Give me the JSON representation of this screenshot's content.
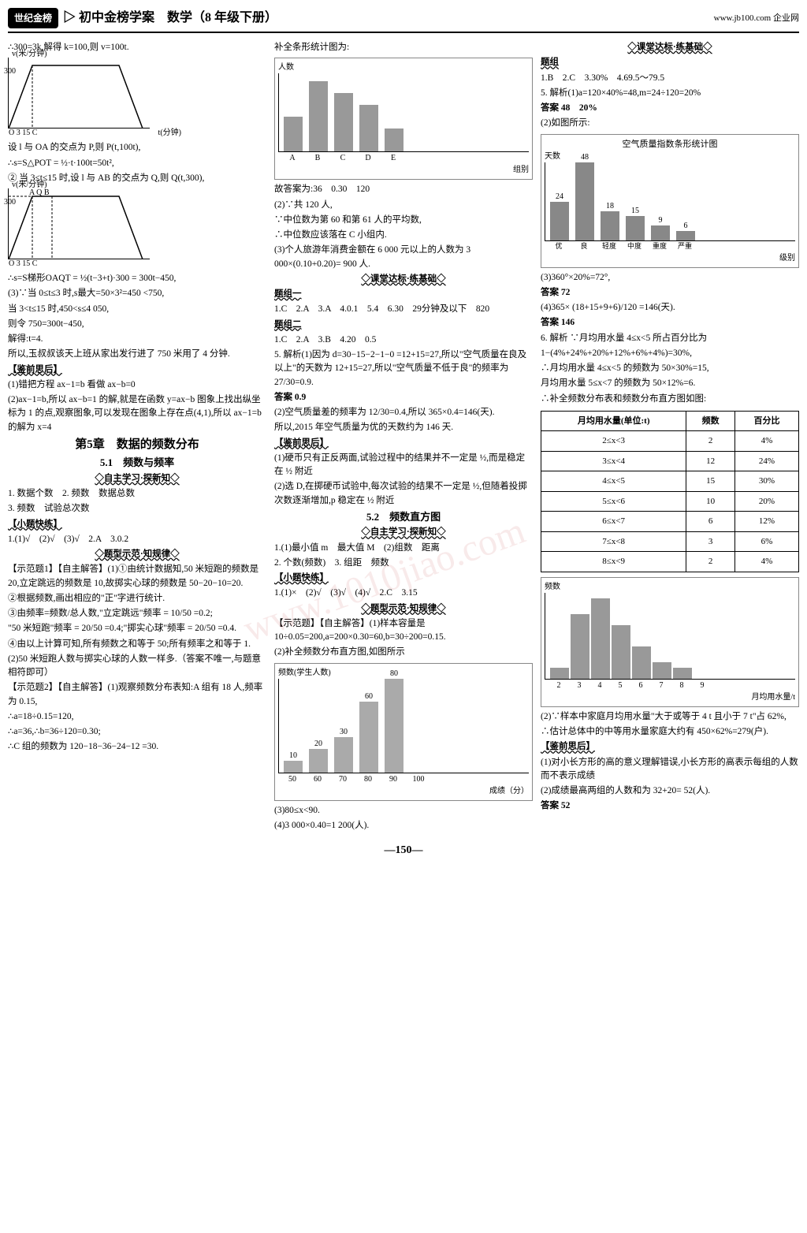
{
  "header": {
    "logo": "世纪金榜",
    "title": "▷ 初中金榜学案　数学（8 年级下册）",
    "url": "www.jb100.com 企业网"
  },
  "col1": {
    "l1": "∴300=3k,解得 k=100,则 v=100t.",
    "graph1_ylabel": "v(米/分钟)",
    "graph1_xlabel": "t(分钟)",
    "graph1_ytick": "300",
    "graph1_xticks": "O  3   15 C",
    "l2": "设 l 与 OA 的交点为 P,则 P(t,100t),",
    "l3": "∴s=S△POT = ½·t·100t=50t²,",
    "l4": "② 当 3≤t≤15 时,设 l 与 AB 的交点为 Q,则 Q(t,300),",
    "graph2_labels": "A  Q  B",
    "l5": "∴s=S梯形OAQT = ½(t−3+t)·300 = 300t−450,",
    "l6": "(3)∵当 0≤t≤3 时,s最大=50×3²=450 <750,",
    "l7": "当 3<t≤15 时,450<s≤4 050,",
    "l8": "则令 750=300t−450,",
    "l9": "解得:t=4.",
    "l10": "所以,玉叔叔该天上班从家出发行进了 750 米用了 4 分钟.",
    "jianqian": "【鉴前思后】",
    "jq1": "(1)错把方程 ax−1=b 看做 ax−b=0",
    "jq2": "(2)ax−1=b,所以 ax−b=1 的解,就是在函数 y=ax−b 图象上找出纵坐标为 1 的点,观察图象,可以发现在图象上存在点(4,1),所以 ax−1=b 的解为 x=4",
    "chapter": "第5章　数据的频数分布",
    "sec51": "5.1　频数与频率",
    "zizhu": "◇自主学习·探新知◇",
    "z1": "1. 数据个数　2. 频数　数据总数",
    "z2": "3. 频数　试验总次数",
    "kuailian": "【小题快练】",
    "kl": "1.(1)√　(2)√　(3)√　2.A　3.0.2",
    "tixing": "◇题型示范·知规律◇",
    "ex1_head": "【示范题1】【自主解答】(1)①由统计数据知,50 米短跑的频数是 20,立定跳远的频数是 10,故掷实心球的频数是 50−20−10=20.",
    "ex1_2": "②根据频数,画出相应的\"正\"字进行统计.",
    "ex1_3": "③由频率=频数/总人数,\"立定跳远\"频率 = 10/50 =0.2;",
    "ex1_4": "\"50 米短跑\"频率 = 20/50 =0.4;\"掷实心球\"频率 = 20/50 =0.4.",
    "ex1_5": "④由以上计算可知,所有频数之和等于 50;所有频率之和等于 1.",
    "ex1_6": "(2)50 米短跑人数与掷实心球的人数一样多.（答案不唯一,与题意相符即可）",
    "ex2_head": "【示范题2】【自主解答】(1)观察频数分布表知:A 组有 18 人,频率为 0.15,",
    "ex2_1": "∴a=18÷0.15=120,",
    "ex2_2": "∴a=36,∴b=36÷120=0.30;",
    "ex2_3": "∴C 组的频数为 120−18−36−24−12 =30."
  },
  "col2": {
    "l1": "补全条形统计图为:",
    "chart1": {
      "ylabel": "人数",
      "ytick_values": [
        36,
        30,
        24,
        18,
        12,
        6
      ],
      "categories": [
        "A",
        "B",
        "C",
        "D",
        "E"
      ],
      "xlabel": "组别",
      "values": [
        18,
        36,
        30,
        24,
        12
      ],
      "bar_color": "#999999",
      "grid_color": "#cccccc"
    },
    "l2": "故答案为:36　0.30　120",
    "l3": "(2)∵共 120 人,",
    "l4": "∵中位数为第 60 和第 61 人的平均数,",
    "l5": "∴中位数应该落在 C 小组内.",
    "l6": "(3)个人旅游年消费金额在 6 000 元以上的人数为 3 000×(0.10+0.20)= 900 人.",
    "ketang": "◇课堂达标·练基础◇",
    "tizu1": "题组一",
    "tz1": "1.C　2.A　3.A　4.0.1　5.4　6.30　29分钟及以下　820",
    "tizu2": "题组二",
    "tz2": "1.C　2.A　3.B　4.20　0.5",
    "q5": "5. 解析(1)因为 d=30−15−2−1−0 =12+15=27,所以\"空气质量在良及以上\"的天数为 12+15=27,所以\"空气质量不低于良\"的频率为 27/30=0.9.",
    "ans5": "答案 0.9",
    "q5_2": "(2)空气质量差的频率为 12/30=0.4,所以 365×0.4=146(天).",
    "q5_3": "所以,2015 年空气质量为优的天数约为 146 天.",
    "jianqian2": "【鉴前思后】",
    "jq2_1": "(1)硬币只有正反两面,试验过程中的结果并不一定是 ½,而是稳定在 ½ 附近",
    "jq2_2": "(2)选 D,在掷硬币试验中,每次试验的结果不一定是 ½,但随着投掷次数逐渐增加,p 稳定在 ½ 附近",
    "sec52": "5.2　频数直方图",
    "zizhu52": "◇自主学习·探新知◇",
    "z52_1": "1.(1)最小值 m　最大值 M　(2)组数　距离",
    "z52_2": "2. 个数(频数)　3. 组距　频数",
    "kl52_head": "【小题快练】",
    "kl52": "1.(1)×　(2)√　(3)√　(4)√　2.C　3.15",
    "tixing52": "◇题型示范·知规律◇",
    "ex52_1": "【示范题】【自主解答】(1)样本容量是 10÷0.05=200,a=200×0.30=60,b=30÷200=0.15.",
    "ex52_2": "(2)补全频数分布直方图,如图所示",
    "chart2": {
      "ylabel": "频数(学生人数)",
      "xlabel": "成绩（分）",
      "categories": [
        "50",
        "60",
        "70",
        "80",
        "90",
        "100"
      ],
      "values": [
        10,
        20,
        30,
        60,
        80
      ],
      "value_labels": [
        "10",
        "20",
        "30",
        "60",
        "80"
      ],
      "bar_color": "#aaaaaa"
    },
    "ex52_3": "(3)80≤x<90.",
    "ex52_4": "(4)3 000×0.40=1 200(人)."
  },
  "col3": {
    "ketang3": "◇课堂达标·练基础◇",
    "tizu": "题组",
    "tz": "1.B　2.C　3.30%　4.69.5～79.5",
    "q5": "5. 解析(1)a=120×40%=48,m=24÷120=20%",
    "ans5": "答案 48　20%",
    "q5_2": "(2)如图所示:",
    "chart3": {
      "title": "空气质量指数条形统计图",
      "ylabel": "天数",
      "categories": [
        "优",
        "良",
        "轻度污染",
        "中度污染",
        "重度污染",
        "严重污染"
      ],
      "cat_short": [
        "优",
        "良",
        "轻度",
        "中度",
        "重度",
        "严重"
      ],
      "xlabel": "级别",
      "values": [
        24,
        48,
        18,
        15,
        9,
        6
      ],
      "bar_color": "#888888",
      "yticks": [
        48,
        42,
        36,
        30,
        24,
        18,
        12,
        6
      ]
    },
    "q5_3": "(3)360°×20%=72°,",
    "ans5_3": "答案 72",
    "q5_4": "(4)365× (18+15+9+6)/120 =146(天).",
    "ans5_4": "答案 146",
    "q6": "6. 解析 ∵月均用水量 4≤x<5 所占百分比为",
    "q6_1": "1−(4%+24%+20%+12%+6%+4%)=30%,",
    "q6_2": "∴月均用水量 4≤x<5 的频数为 50×30%=15,",
    "q6_3": "月均用水量 5≤x<7 的频数为 50×12%=6.",
    "q6_4": "∴补全频数分布表和频数分布直方图如图:",
    "table": {
      "headers": [
        "月均用水量(单位:t)",
        "频数",
        "百分比"
      ],
      "rows": [
        [
          "2≤x<3",
          "2",
          "4%"
        ],
        [
          "3≤x<4",
          "12",
          "24%"
        ],
        [
          "4≤x<5",
          "15",
          "30%"
        ],
        [
          "5≤x<6",
          "10",
          "20%"
        ],
        [
          "6≤x<7",
          "6",
          "12%"
        ],
        [
          "7≤x<8",
          "3",
          "6%"
        ],
        [
          "8≤x<9",
          "2",
          "4%"
        ]
      ]
    },
    "chart4": {
      "ylabel": "频数",
      "xlabel": "月均用水量/t",
      "xticks": [
        "2",
        "3",
        "4",
        "5",
        "6",
        "7",
        "8",
        "9"
      ],
      "values": [
        2,
        12,
        15,
        10,
        6,
        3,
        2
      ],
      "yticks": [
        14,
        12,
        10,
        8,
        6,
        4,
        2
      ],
      "bar_color": "#999999"
    },
    "q6_5": "(2)∵样本中家庭月均用水量\"大于或等于 4 t 且小于 7 t\"占 62%,",
    "q6_6": "∴估计总体中的中等用水量家庭大约有 450×62%=279(户).",
    "jianqian3": "【鉴前思后】",
    "jq3_1": "(1)对小长方形的高的意义理解错误,小长方形的高表示每组的人数而不表示成绩",
    "jq3_2": "(2)成绩最高两组的人数和为 32+20= 52(人).",
    "ans_jq": "答案 52"
  },
  "page_num": "—150—",
  "watermark": "www.1010jiao.com"
}
